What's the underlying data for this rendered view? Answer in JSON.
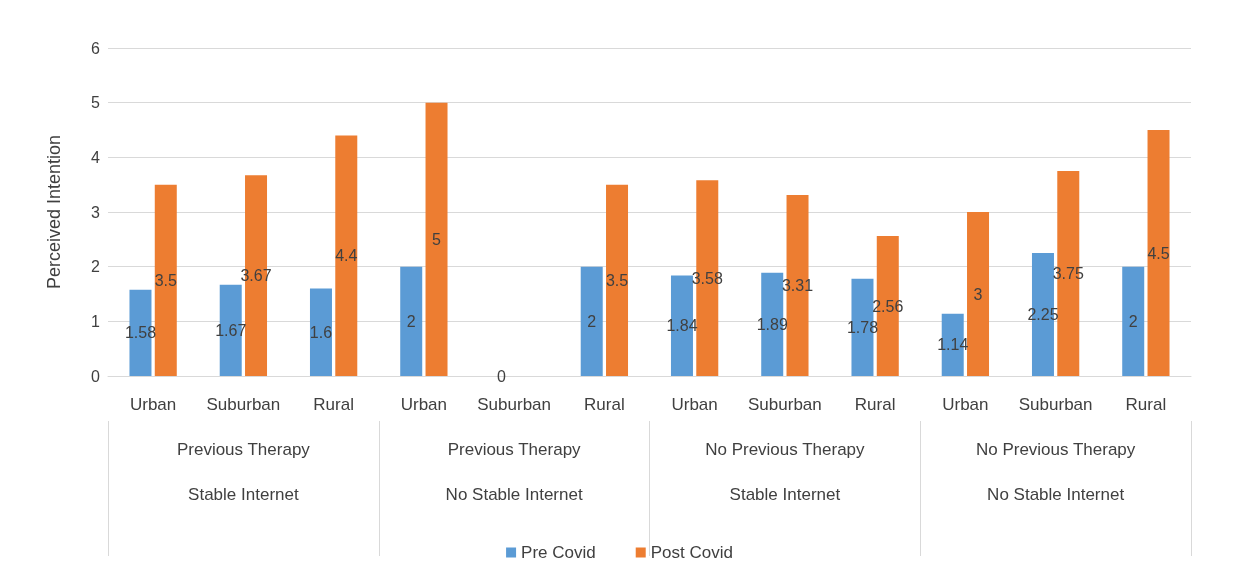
{
  "chart_data": {
    "type": "bar",
    "ylabel": "Perceived Intention",
    "categories": [
      "Urban",
      "Suburban",
      "Rural",
      "Urban",
      "Suburban",
      "Rural",
      "Urban",
      "Suburban",
      "Rural",
      "Urban",
      "Suburban",
      "Rural"
    ],
    "series": [
      {
        "name": "Pre Covid",
        "color": "#5b9bd5",
        "values": [
          1.58,
          1.67,
          1.6,
          2,
          0,
          2,
          1.84,
          1.89,
          1.78,
          1.14,
          2.25,
          2
        ]
      },
      {
        "name": "Post Covid",
        "color": "#ed7d31",
        "values": [
          3.5,
          3.67,
          4.4,
          5,
          null,
          3.5,
          3.58,
          3.31,
          2.56,
          3,
          3.75,
          4.5
        ]
      }
    ],
    "annotations": [
      "Previous Therapy",
      "Previous Therapy",
      "No Previous Therapy",
      "No Previous Therapy",
      "Stable Internet",
      "No Stable Internet",
      "Stable Internet",
      "No Stable Internet"
    ],
    "ylim": [
      0,
      6
    ],
    "yticks": [
      0,
      1,
      2,
      3,
      4,
      5,
      6
    ],
    "grid": "y",
    "legend": "bottom",
    "data_labels": true
  }
}
